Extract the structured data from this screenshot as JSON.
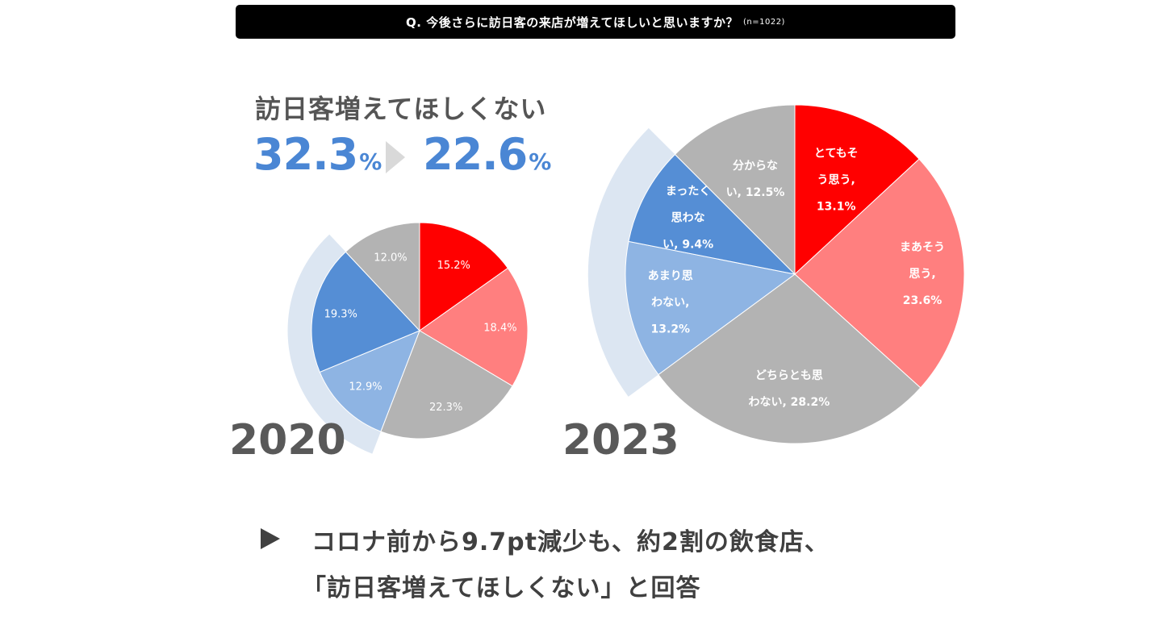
{
  "question": {
    "text": "Q. 今後さらに訪日客の来店が増えてほしいと思いますか？",
    "n": "(n=1022)"
  },
  "highlight": {
    "label": "訪日客増えてほしくない",
    "from_value": "32.3",
    "to_value": "22.6",
    "unit": "%"
  },
  "chart_data": [
    {
      "type": "pie",
      "title": "2020",
      "categories": [
        "とてもそう思う",
        "まあそう思う",
        "どちらとも思わない",
        "あまり思わない",
        "まったく思わない",
        "分からない"
      ],
      "values": [
        15.2,
        18.4,
        22.3,
        12.9,
        19.3,
        12.0
      ],
      "labels": [
        "15.2%",
        "18.4%",
        "22.3%",
        "12.9%",
        "19.3%",
        "12.0%"
      ],
      "colors": [
        "#ff0000",
        "#ff7f7f",
        "#b3b3b3",
        "#8eb4e3",
        "#558ed5",
        "#b3b3b3"
      ],
      "label_colors": [
        "#ffffff",
        "#ffffff",
        "#ffffff",
        "#ffffff",
        "#ffffff",
        "#ffffff"
      ]
    },
    {
      "type": "pie",
      "title": "2023",
      "categories": [
        "とてもそう思う",
        "まあそう思う",
        "どちらとも思わない",
        "あまり思わない",
        "まったく思わない",
        "分からない"
      ],
      "values": [
        13.1,
        23.6,
        28.2,
        13.2,
        9.4,
        12.5
      ],
      "labels": [
        [
          "とてもそ",
          "う思う,",
          "13.1%"
        ],
        [
          "まあそう",
          "思う,",
          "23.6%"
        ],
        [
          "どちらとも思",
          "わない, 28.2%"
        ],
        [
          "あまり思",
          "わない,",
          "13.2%"
        ],
        [
          "まったく",
          "思わな",
          "い, 9.4%"
        ],
        [
          "分からな",
          "い, 12.5%"
        ]
      ],
      "colors": [
        "#ff0000",
        "#ff7f7f",
        "#b3b3b3",
        "#8eb4e3",
        "#558ed5",
        "#b3b3b3"
      ]
    }
  ],
  "notes": {
    "line1": "コロナ前から9.7pt減少も、約2割の飲食店、",
    "line2": "「訪日客増えてほしくない」と回答"
  },
  "colors": {
    "accent_blue": "#4a86d4",
    "halo": "#dce6f2"
  }
}
